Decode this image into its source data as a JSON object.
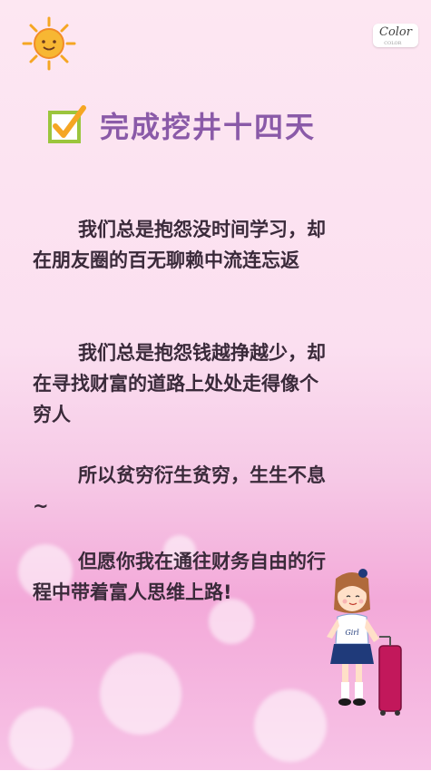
{
  "logo": {
    "text": "Color"
  },
  "title": {
    "text": "完成挖井十四天"
  },
  "paragraphs": [
    "我们总是抱怨没时间学习，却在朋友圈的百无聊赖中流连忘返",
    "我们总是抱怨钱越挣越少，却在寻找财富的道路上处处走得像个穷人",
    "所以贫穷衍生贫穷，生生不息~",
    "但愿你我在通往财务自由的行程中带着富人思维上路!"
  ],
  "girl": {
    "shirt_text": "Girl"
  },
  "colors": {
    "title": "#8a5aa8",
    "check_border": "#9bc53d",
    "check_tick": "#f5a623",
    "text": "#3a2a3a"
  }
}
